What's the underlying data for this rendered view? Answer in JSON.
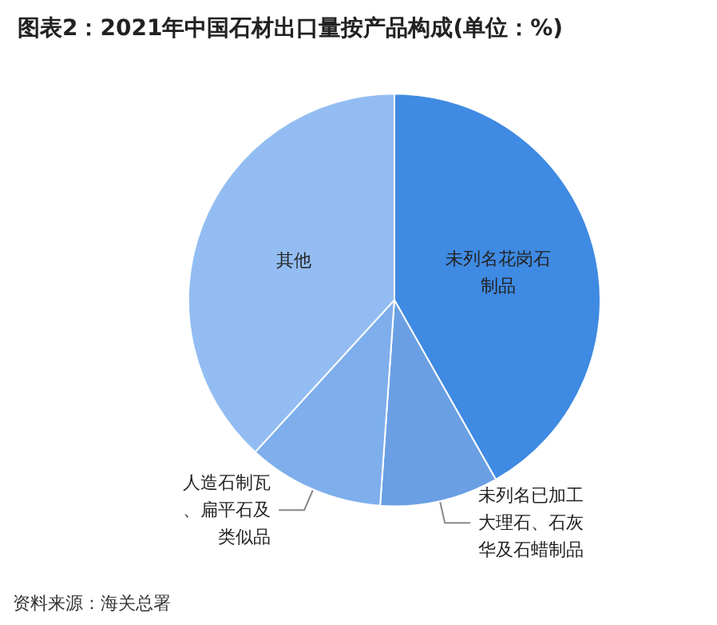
{
  "chart_data": {
    "type": "pie",
    "title": "图表2：2021年中国石材出口量按产品构成(单位：%)",
    "categories": [
      "未列名花岗石制品",
      "未列名已加工大理石、石灰华及石蜡制品",
      "人造石制瓦、扁平石及类似品",
      "其他"
    ],
    "values": [
      41.8,
      9.3,
      10.7,
      38.2
    ],
    "colors": [
      "#3f8ae2",
      "#6a9fe4",
      "#7eaeec",
      "#93bdf2"
    ],
    "annotations": [
      "资料来源：海关总署"
    ]
  }
}
